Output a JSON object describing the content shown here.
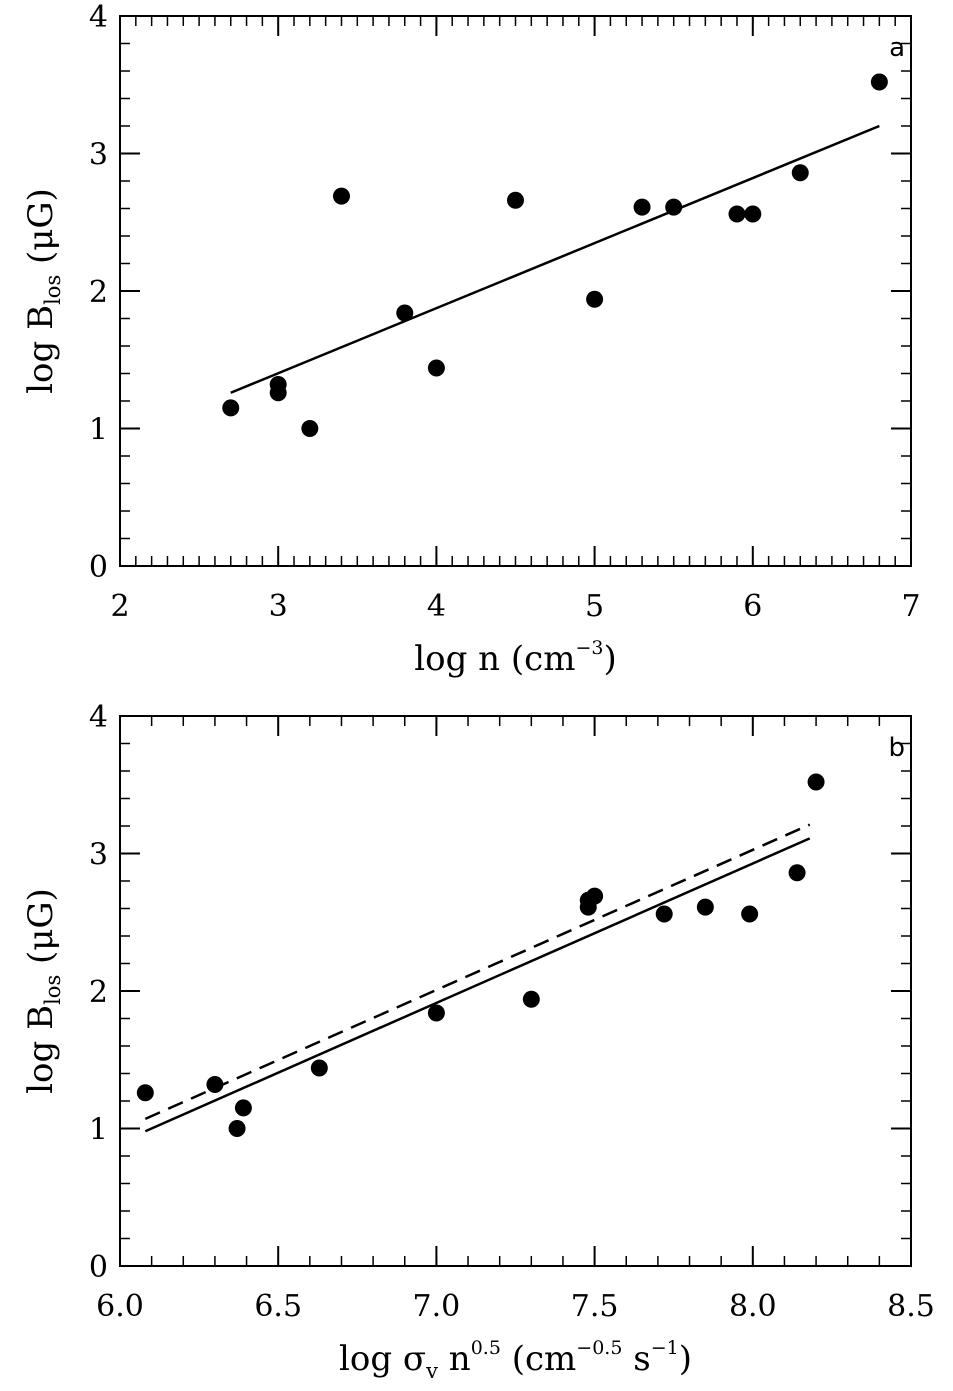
{
  "chart_data": [
    {
      "type": "scatter",
      "panel_label": "a",
      "xlabel": {
        "prefix": "log  n  (cm",
        "sup": "−3",
        "suffix": ")"
      },
      "ylabel": {
        "prefix": "log  B",
        "sub": "los",
        "suffix": "  (μG)"
      },
      "xlim": [
        2,
        7
      ],
      "ylim": [
        0,
        4
      ],
      "x_ticks": [
        2,
        3,
        4,
        5,
        6,
        7
      ],
      "x_tick_labels": [
        "2",
        "3",
        "4",
        "5",
        "6",
        "7"
      ],
      "y_ticks": [
        0,
        1,
        2,
        3,
        4
      ],
      "y_tick_labels": [
        "0",
        "1",
        "2",
        "3",
        "4"
      ],
      "x_minor_step": 0.1,
      "y_minor_step": 0.2,
      "points": [
        {
          "x": 2.7,
          "y": 1.15
        },
        {
          "x": 3.0,
          "y": 1.32
        },
        {
          "x": 3.0,
          "y": 1.26
        },
        {
          "x": 3.2,
          "y": 1.0
        },
        {
          "x": 3.4,
          "y": 2.69
        },
        {
          "x": 3.8,
          "y": 1.84
        },
        {
          "x": 4.0,
          "y": 1.44
        },
        {
          "x": 4.5,
          "y": 2.66
        },
        {
          "x": 5.0,
          "y": 1.94
        },
        {
          "x": 5.3,
          "y": 2.61
        },
        {
          "x": 5.5,
          "y": 2.61
        },
        {
          "x": 5.9,
          "y": 2.56
        },
        {
          "x": 6.0,
          "y": 2.56
        },
        {
          "x": 6.3,
          "y": 2.86
        },
        {
          "x": 6.8,
          "y": 3.52
        }
      ],
      "lines": [
        {
          "name": "fit",
          "style": "solid",
          "x": [
            2.7,
            6.8
          ],
          "y": [
            1.26,
            3.2
          ]
        }
      ]
    },
    {
      "type": "scatter",
      "panel_label": "b",
      "xlabel": {
        "prefix": "log  σ",
        "sub": "v",
        "mid": "  n",
        "sup": "0.5",
        "mid2": "  (cm",
        "sup2": "−0.5",
        "mid3": "  s",
        "sup3": "−1",
        "suffix": ")"
      },
      "ylabel": {
        "prefix": "log  B",
        "sub": "los",
        "suffix": "  (μG)"
      },
      "xlim": [
        6.0,
        8.5
      ],
      "ylim": [
        0,
        4
      ],
      "x_ticks": [
        6.0,
        6.5,
        7.0,
        7.5,
        8.0,
        8.5
      ],
      "x_tick_labels": [
        "6.0",
        "6.5",
        "7.0",
        "7.5",
        "8.0",
        "8.5"
      ],
      "y_ticks": [
        0,
        1,
        2,
        3,
        4
      ],
      "y_tick_labels": [
        "0",
        "1",
        "2",
        "3",
        "4"
      ],
      "x_minor_step": 0.1,
      "y_minor_step": 0.2,
      "points": [
        {
          "x": 6.08,
          "y": 1.26
        },
        {
          "x": 6.3,
          "y": 1.32
        },
        {
          "x": 6.37,
          "y": 1.0
        },
        {
          "x": 6.39,
          "y": 1.15
        },
        {
          "x": 6.63,
          "y": 1.44
        },
        {
          "x": 7.0,
          "y": 1.84
        },
        {
          "x": 7.3,
          "y": 1.94
        },
        {
          "x": 7.48,
          "y": 2.66
        },
        {
          "x": 7.48,
          "y": 2.61
        },
        {
          "x": 7.5,
          "y": 2.69
        },
        {
          "x": 7.72,
          "y": 2.56
        },
        {
          "x": 7.85,
          "y": 2.61
        },
        {
          "x": 7.99,
          "y": 2.56
        },
        {
          "x": 8.14,
          "y": 2.86
        },
        {
          "x": 8.2,
          "y": 3.52
        }
      ],
      "lines": [
        {
          "name": "fit",
          "style": "solid",
          "x": [
            6.08,
            8.18
          ],
          "y": [
            0.98,
            3.11
          ]
        },
        {
          "name": "reference",
          "style": "dashed",
          "x": [
            6.08,
            8.18
          ],
          "y": [
            1.07,
            3.21
          ]
        }
      ]
    }
  ]
}
